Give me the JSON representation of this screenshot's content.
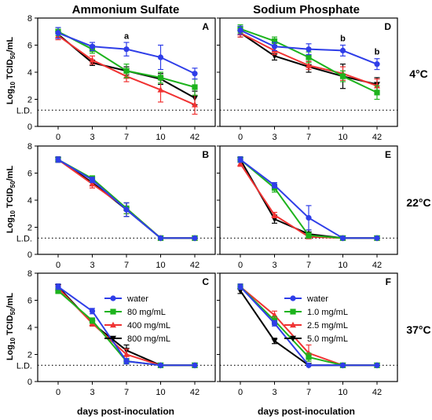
{
  "column_titles": [
    "Ammonium Sulfate",
    "Sodium Phosphate"
  ],
  "row_labels": [
    "4°C",
    "22°C",
    "37°C"
  ],
  "ylabel_parts": [
    "Log",
    "10",
    " TCID",
    "50",
    "/mL"
  ],
  "xlabel": "days post-inoculation",
  "ld_label": "L.D.",
  "chart_data": [
    {
      "type": "line",
      "panel": "A",
      "x_ticks": [
        "0",
        "3",
        "7",
        "10",
        "42"
      ],
      "y_ticks": [
        0,
        2,
        4,
        6,
        8
      ],
      "ylim": [
        0,
        8
      ],
      "ld": 1.2,
      "series": [
        {
          "name": "water",
          "color": "#2f3ee8",
          "marker": "circle",
          "values": [
            6.9,
            5.9,
            5.7,
            5.1,
            3.9
          ],
          "err": [
            0.4,
            0.3,
            0.5,
            0.9,
            0.4
          ]
        },
        {
          "name": "80 mg/mL",
          "color": "#1db31d",
          "marker": "square",
          "values": [
            7.0,
            5.7,
            4.1,
            3.6,
            2.9
          ],
          "err": [
            0.3,
            0.3,
            0.5,
            0.4,
            0.6
          ]
        },
        {
          "name": "400 mg/mL",
          "color": "#f03232",
          "marker": "triangle",
          "values": [
            6.7,
            4.9,
            3.7,
            2.7,
            1.6
          ],
          "err": [
            0.3,
            0.3,
            0.4,
            0.9,
            0.7
          ]
        },
        {
          "name": "800 mg/mL",
          "color": "#000000",
          "marker": "triangle-down",
          "values": [
            6.8,
            4.7,
            4.1,
            3.5,
            2.1
          ],
          "err": [
            0.3,
            0.2,
            0.3,
            0.4,
            0.5
          ]
        }
      ],
      "annotations": [
        {
          "text": "a",
          "x_index": 2,
          "y": 6.45
        }
      ]
    },
    {
      "type": "line",
      "panel": "D",
      "x_ticks": [
        "0",
        "3",
        "7",
        "10",
        "42"
      ],
      "y_ticks": [
        0,
        2,
        4,
        6,
        8
      ],
      "ylim": [
        0,
        8
      ],
      "ld": 1.2,
      "series": [
        {
          "name": "water",
          "color": "#2f3ee8",
          "marker": "circle",
          "values": [
            7.1,
            5.9,
            5.7,
            5.6,
            4.6
          ],
          "err": [
            0.3,
            0.3,
            0.4,
            0.4,
            0.4
          ]
        },
        {
          "name": "1.0 mg/mL",
          "color": "#1db31d",
          "marker": "square",
          "values": [
            7.2,
            6.3,
            5.1,
            3.7,
            2.5
          ],
          "err": [
            0.3,
            0.3,
            0.4,
            0.4,
            0.5
          ]
        },
        {
          "name": "2.5 mg/mL",
          "color": "#f03232",
          "marker": "triangle",
          "values": [
            6.9,
            5.6,
            4.5,
            3.9,
            3.0
          ],
          "err": [
            0.3,
            0.3,
            0.3,
            0.5,
            0.5
          ]
        },
        {
          "name": "5.0 mg/mL",
          "color": "#000000",
          "marker": "triangle-down",
          "values": [
            6.9,
            5.2,
            4.4,
            3.7,
            3.1
          ],
          "err": [
            0.3,
            0.3,
            0.4,
            0.9,
            0.5
          ]
        }
      ],
      "annotations": [
        {
          "text": "b",
          "x_index": 3,
          "y": 6.3
        },
        {
          "text": "b",
          "x_index": 4,
          "y": 5.3
        }
      ]
    },
    {
      "type": "line",
      "panel": "B",
      "x_ticks": [
        "0",
        "3",
        "7",
        "10",
        "42"
      ],
      "y_ticks": [
        0,
        2,
        4,
        6,
        8
      ],
      "ylim": [
        0,
        8
      ],
      "ld": 1.2,
      "series": [
        {
          "name": "water",
          "color": "#2f3ee8",
          "marker": "circle",
          "values": [
            7.0,
            5.5,
            3.3,
            1.2,
            1.2
          ],
          "err": [
            0.2,
            0.2,
            0.5,
            0,
            0
          ]
        },
        {
          "name": "80 mg/mL",
          "color": "#1db31d",
          "marker": "square",
          "values": [
            7.0,
            5.6,
            3.4,
            1.2,
            1.2
          ],
          "err": [
            0.2,
            0.2,
            0.4,
            0,
            0
          ]
        },
        {
          "name": "400 mg/mL",
          "color": "#f03232",
          "marker": "triangle",
          "values": [
            7.0,
            5.2,
            3.4,
            1.2,
            1.2
          ],
          "err": [
            0.2,
            0.3,
            0.4,
            0,
            0
          ]
        },
        {
          "name": "800 mg/mL",
          "color": "#000000",
          "marker": "triangle-down",
          "values": [
            7.0,
            5.3,
            3.3,
            1.2,
            1.2
          ],
          "err": [
            0.2,
            0.2,
            0.5,
            0,
            0
          ]
        }
      ],
      "annotations": []
    },
    {
      "type": "line",
      "panel": "E",
      "x_ticks": [
        "0",
        "3",
        "7",
        "10",
        "42"
      ],
      "y_ticks": [
        0,
        2,
        4,
        6,
        8
      ],
      "ylim": [
        0,
        8
      ],
      "ld": 1.2,
      "series": [
        {
          "name": "water",
          "color": "#2f3ee8",
          "marker": "circle",
          "values": [
            7.0,
            5.1,
            2.7,
            1.2,
            1.2
          ],
          "err": [
            0.2,
            0.2,
            0.9,
            0,
            0
          ]
        },
        {
          "name": "1.0 mg/mL",
          "color": "#1db31d",
          "marker": "square",
          "values": [
            7.0,
            4.9,
            1.4,
            1.2,
            1.2
          ],
          "err": [
            0.2,
            0.3,
            0.2,
            0,
            0
          ]
        },
        {
          "name": "2.5 mg/mL",
          "color": "#f03232",
          "marker": "triangle",
          "values": [
            6.7,
            2.9,
            1.3,
            1.2,
            1.2
          ],
          "err": [
            0.2,
            0.2,
            0.1,
            0,
            0
          ]
        },
        {
          "name": "5.0 mg/mL",
          "color": "#000000",
          "marker": "triangle-down",
          "values": [
            7.0,
            2.6,
            1.5,
            1.2,
            1.2
          ],
          "err": [
            0.2,
            0.3,
            0.3,
            0,
            0
          ]
        }
      ],
      "annotations": []
    },
    {
      "type": "line",
      "panel": "C",
      "x_ticks": [
        "0",
        "3",
        "7",
        "10",
        "42"
      ],
      "y_ticks": [
        0,
        2,
        4,
        6,
        8
      ],
      "ylim": [
        0,
        8
      ],
      "ld": 1.2,
      "series": [
        {
          "name": "water",
          "color": "#2f3ee8",
          "marker": "circle",
          "values": [
            7.0,
            5.2,
            1.5,
            1.2,
            1.2
          ],
          "err": [
            0.2,
            0.2,
            0.2,
            0,
            0
          ]
        },
        {
          "name": "80 mg/mL",
          "color": "#1db31d",
          "marker": "square",
          "values": [
            6.7,
            4.5,
            1.5,
            1.2,
            1.2
          ],
          "err": [
            0.2,
            0.2,
            0.2,
            0,
            0
          ]
        },
        {
          "name": "400 mg/mL",
          "color": "#f03232",
          "marker": "triangle",
          "values": [
            6.9,
            4.3,
            2.0,
            1.2,
            1.2
          ],
          "err": [
            0.2,
            0.2,
            0.4,
            0,
            0
          ]
        },
        {
          "name": "800 mg/mL",
          "color": "#000000",
          "marker": "triangle-down",
          "values": [
            7.0,
            4.3,
            2.3,
            1.2,
            1.2
          ],
          "err": [
            0.2,
            0.2,
            0.4,
            0,
            0
          ]
        }
      ],
      "annotations": []
    },
    {
      "type": "line",
      "panel": "F",
      "x_ticks": [
        "0",
        "3",
        "7",
        "10",
        "42"
      ],
      "y_ticks": [
        0,
        2,
        4,
        6,
        8
      ],
      "ylim": [
        0,
        8
      ],
      "ld": 1.2,
      "series": [
        {
          "name": "water",
          "color": "#2f3ee8",
          "marker": "circle",
          "values": [
            7.0,
            4.3,
            1.2,
            1.2,
            1.2
          ],
          "err": [
            0.2,
            0.2,
            0,
            0,
            0
          ]
        },
        {
          "name": "1.0 mg/mL",
          "color": "#1db31d",
          "marker": "square",
          "values": [
            7.0,
            4.5,
            1.8,
            1.2,
            1.2
          ],
          "err": [
            0.2,
            0.3,
            0.3,
            0,
            0
          ]
        },
        {
          "name": "2.5 mg/mL",
          "color": "#f03232",
          "marker": "triangle",
          "values": [
            7.0,
            4.9,
            2.1,
            1.2,
            1.2
          ],
          "err": [
            0.2,
            0.3,
            0.6,
            0,
            0
          ]
        },
        {
          "name": "5.0 mg/mL",
          "color": "#000000",
          "marker": "triangle-down",
          "values": [
            6.7,
            3.0,
            1.2,
            1.2,
            1.2
          ],
          "err": [
            0.2,
            0.2,
            0,
            0,
            0
          ]
        }
      ],
      "annotations": []
    }
  ],
  "legends": [
    {
      "panel": "C",
      "entries": [
        "water",
        "80 mg/mL",
        "400 mg/mL",
        "800 mg/mL"
      ],
      "colors": [
        "#2f3ee8",
        "#1db31d",
        "#f03232",
        "#000000"
      ],
      "markers": [
        "circle",
        "square",
        "triangle",
        "triangle-down"
      ]
    },
    {
      "panel": "F",
      "entries": [
        "water",
        "1.0 mg/mL",
        "2.5 mg/mL",
        "5.0 mg/mL"
      ],
      "colors": [
        "#2f3ee8",
        "#1db31d",
        "#f03232",
        "#000000"
      ],
      "markers": [
        "circle",
        "square",
        "triangle",
        "triangle-down"
      ]
    }
  ]
}
